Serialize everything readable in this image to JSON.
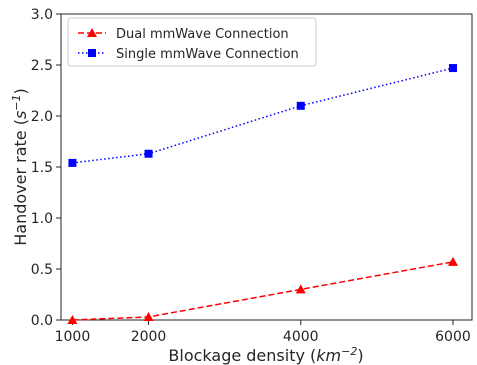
{
  "chart_data": {
    "type": "line",
    "x": [
      1000,
      2000,
      4000,
      6000
    ],
    "xticks": [
      1000,
      2000,
      4000,
      6000
    ],
    "yticks": [
      0.0,
      0.5,
      1.0,
      1.5,
      2.0,
      2.5,
      3.0
    ],
    "ytick_labels": [
      "0.0",
      "0.5",
      "1.0",
      "1.5",
      "2.0",
      "2.5",
      "3.0"
    ],
    "xlim": [
      850,
      6250
    ],
    "ylim": [
      0.0,
      3.0
    ],
    "xlabel": {
      "pre": "Blockage density (",
      "var": "km",
      "sup": "−2",
      "post": ")"
    },
    "ylabel": {
      "pre": "Handover rate (",
      "var": "s",
      "sup": "−1",
      "post": ")"
    },
    "legend_position": "top-left",
    "grid": false,
    "series": [
      {
        "name": "Dual mmWave Connection",
        "values": [
          0.0,
          0.03,
          0.3,
          0.57
        ],
        "color": "#ff0000",
        "linestyle": "dashed",
        "marker": "triangle"
      },
      {
        "name": "Single mmWave Connection",
        "values": [
          1.54,
          1.63,
          2.1,
          2.47
        ],
        "color": "#0000ff",
        "linestyle": "dotted",
        "marker": "square"
      }
    ]
  }
}
